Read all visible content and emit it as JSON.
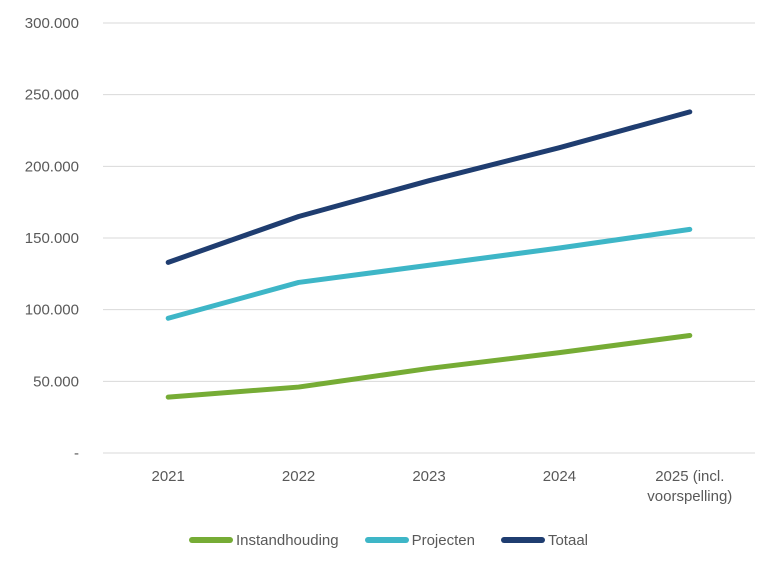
{
  "chart_data": {
    "type": "line",
    "title": "",
    "xlabel": "",
    "ylabel": "",
    "categories": [
      "2021",
      "2022",
      "2023",
      "2024",
      "2025 (incl.\nvoorspelling)"
    ],
    "series": [
      {
        "name": "Instandhouding",
        "color": "#76AC35",
        "values": [
          39000,
          46000,
          59000,
          70000,
          82000
        ]
      },
      {
        "name": "Projecten",
        "color": "#3EB6C7",
        "values": [
          94000,
          119000,
          131000,
          143000,
          156000
        ]
      },
      {
        "name": "Totaal",
        "color": "#1F3D70",
        "values": [
          133000,
          165000,
          190000,
          213000,
          238000
        ]
      }
    ],
    "ylim": [
      0,
      300000
    ],
    "y_ticks": [
      {
        "value": 0,
        "label": "-"
      },
      {
        "value": 50000,
        "label": "50.000"
      },
      {
        "value": 100000,
        "label": "100.000"
      },
      {
        "value": 150000,
        "label": "150.000"
      },
      {
        "value": 200000,
        "label": "200.000"
      },
      {
        "value": 250000,
        "label": "250.000"
      },
      {
        "value": 300000,
        "label": "300.000"
      }
    ],
    "grid": "horizontal",
    "legend_position": "bottom"
  },
  "styles": {
    "background": "#FFFFFF",
    "text_color": "#595959",
    "grid_color": "#D9D9D9"
  }
}
